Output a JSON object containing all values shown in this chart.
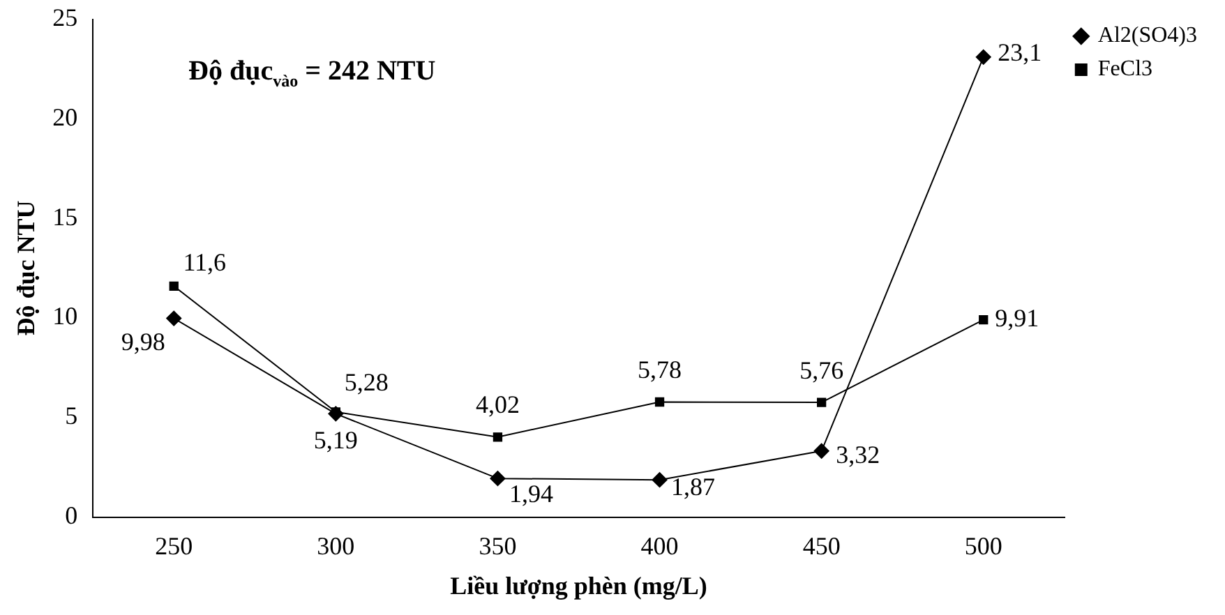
{
  "chart_data": {
    "type": "line",
    "xlabel": "Liều lượng phèn (mg/L)",
    "ylabel": "Độ đục NTU",
    "categories": [
      "250",
      "300",
      "350",
      "400",
      "450",
      "500"
    ],
    "series": [
      {
        "name": "Al2(SO4)3",
        "color": "#000000",
        "marker": "diamond",
        "values": [
          9.98,
          5.19,
          1.94,
          1.87,
          3.32,
          23.1
        ],
        "value_labels": [
          "9,98",
          "5,19",
          "1,94",
          "1,87",
          "3,32",
          "23,1"
        ]
      },
      {
        "name": "FeCl3",
        "color": "#000000",
        "marker": "square",
        "values": [
          11.6,
          5.28,
          4.02,
          5.78,
          5.76,
          9.91
        ],
        "value_labels": [
          "11,6",
          "5,28",
          "4,02",
          "5,78",
          "5,76",
          "9,91"
        ]
      }
    ],
    "ylim": [
      0,
      25
    ],
    "yticks": [
      0,
      5,
      10,
      15,
      20,
      25
    ],
    "grid": false,
    "legend": "top right",
    "line_style": "solid",
    "annotations": [
      "Độ đục$_{vào}$ = 242 NTU"
    ]
  }
}
